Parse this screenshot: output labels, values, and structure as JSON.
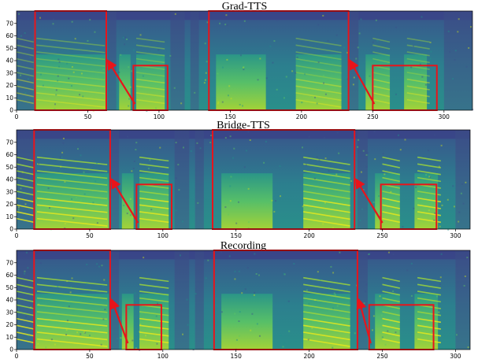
{
  "figure": {
    "panels": [
      {
        "title": "Grad-TTS",
        "x_ticks": [
          "0",
          "50",
          "100",
          "150",
          "200",
          "250",
          "300"
        ],
        "y_ticks": [
          "0",
          "10",
          "20",
          "30",
          "40",
          "50",
          "60",
          "70"
        ]
      },
      {
        "title": "Bridge-TTS",
        "x_ticks": [
          "0",
          "50",
          "100",
          "150",
          "200",
          "250",
          "300"
        ],
        "y_ticks": [
          "0",
          "10",
          "20",
          "30",
          "40",
          "50",
          "60",
          "70"
        ]
      },
      {
        "title": "Recording",
        "x_ticks": [
          "0",
          "50",
          "100",
          "150",
          "200",
          "250",
          "300"
        ],
        "y_ticks": [
          "0",
          "10",
          "20",
          "30",
          "40",
          "50",
          "60",
          "70"
        ]
      }
    ],
    "colors": {
      "highlight": "#e8141b",
      "colormap": [
        "#440154",
        "#3b528b",
        "#21918c",
        "#5ec962",
        "#c8e020",
        "#fde725"
      ]
    }
  },
  "chart_data": [
    {
      "type": "heatmap",
      "title": "Grad-TTS",
      "xlim": [
        0,
        320
      ],
      "ylim": [
        0,
        80
      ],
      "x_ticks": [
        0,
        50,
        100,
        150,
        200,
        250,
        300
      ],
      "y_ticks": [
        0,
        10,
        20,
        30,
        40,
        50,
        60,
        70
      ],
      "colormap": "viridis",
      "highlight_boxes": [
        {
          "x": [
            13,
            63
          ],
          "y": [
            0,
            80
          ],
          "zoom_of": [
            82,
            106
          ]
        },
        {
          "x": [
            82,
            106
          ],
          "y": [
            0,
            36
          ]
        },
        {
          "x": [
            135,
            233
          ],
          "y": [
            0,
            80
          ],
          "zoom_of": [
            250,
            295
          ]
        },
        {
          "x": [
            250,
            295
          ],
          "y": [
            0,
            36
          ]
        }
      ]
    },
    {
      "type": "heatmap",
      "title": "Bridge-TTS",
      "xlim": [
        0,
        310
      ],
      "ylim": [
        0,
        80
      ],
      "x_ticks": [
        0,
        50,
        100,
        150,
        200,
        250,
        300
      ],
      "y_ticks": [
        0,
        10,
        20,
        30,
        40,
        50,
        60,
        70
      ],
      "colormap": "viridis",
      "highlight_boxes": [
        {
          "x": [
            12,
            64
          ],
          "y": [
            0,
            80
          ],
          "zoom_of": [
            82,
            106
          ]
        },
        {
          "x": [
            82,
            106
          ],
          "y": [
            0,
            36
          ]
        },
        {
          "x": [
            134,
            231
          ],
          "y": [
            0,
            80
          ],
          "zoom_of": [
            249,
            287
          ]
        },
        {
          "x": [
            249,
            287
          ],
          "y": [
            0,
            36
          ]
        }
      ]
    },
    {
      "type": "heatmap",
      "title": "Recording",
      "xlim": [
        0,
        310
      ],
      "ylim": [
        0,
        80
      ],
      "x_ticks": [
        0,
        50,
        100,
        150,
        200,
        250,
        300
      ],
      "y_ticks": [
        0,
        10,
        20,
        30,
        40,
        50,
        60,
        70
      ],
      "colormap": "viridis",
      "highlight_boxes": [
        {
          "x": [
            12,
            64
          ],
          "y": [
            0,
            80
          ],
          "zoom_of": [
            75,
            99
          ]
        },
        {
          "x": [
            75,
            99
          ],
          "y": [
            0,
            36
          ]
        },
        {
          "x": [
            135,
            233
          ],
          "y": [
            0,
            80
          ],
          "zoom_of": [
            241,
            285
          ]
        },
        {
          "x": [
            241,
            285
          ],
          "y": [
            0,
            36
          ]
        }
      ]
    }
  ]
}
